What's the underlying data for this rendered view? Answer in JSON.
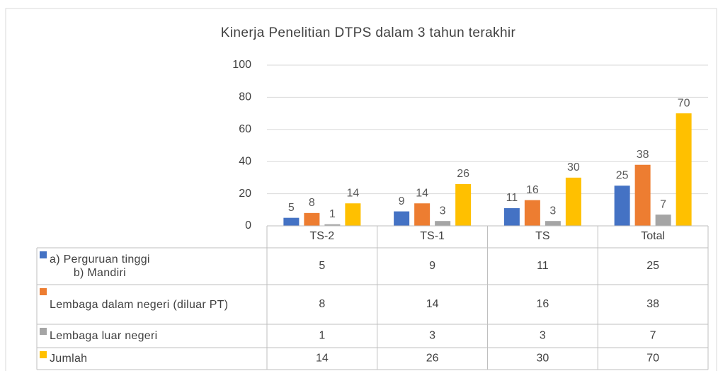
{
  "chart_data": {
    "type": "bar",
    "title": "Kinerja Penelitian DTPS dalam 3 tahun terakhir",
    "categories": [
      "TS-2",
      "TS-1",
      "TS",
      "Total"
    ],
    "series": [
      {
        "name": "a) Perguruan tinggi\nb) Mandiri",
        "color": "#4472c4",
        "values": [
          5,
          9,
          11,
          25
        ]
      },
      {
        "name": "Lembaga dalam negeri (diluar PT)",
        "color": "#ed7d31",
        "values": [
          8,
          14,
          16,
          38
        ]
      },
      {
        "name": "Lembaga luar negeri",
        "color": "#a5a5a5",
        "values": [
          1,
          3,
          3,
          7
        ]
      },
      {
        "name": "Jumlah",
        "color": "#ffc000",
        "values": [
          14,
          26,
          30,
          70
        ]
      }
    ],
    "ylim": [
      0,
      100
    ],
    "yticks": [
      0,
      20,
      40,
      60,
      80,
      100
    ],
    "grid": true,
    "data_table": true
  }
}
